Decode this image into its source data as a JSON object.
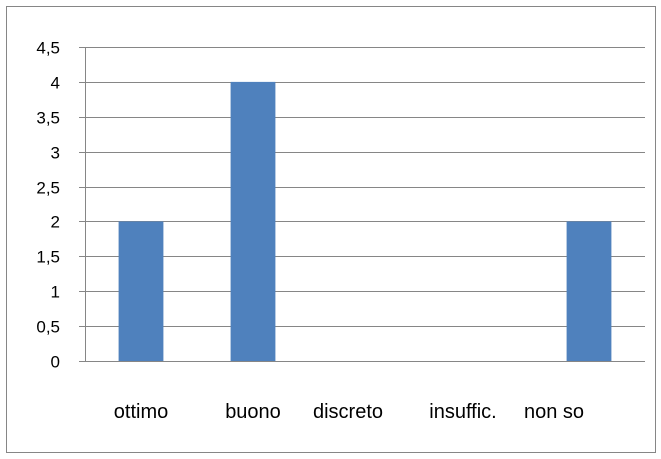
{
  "chart_data": {
    "type": "bar",
    "title": "",
    "xlabel": "",
    "ylabel": "",
    "categories": [
      "ottimo",
      "buono",
      "discreto",
      "insuffic.",
      "non so"
    ],
    "values": [
      2,
      4,
      0,
      0,
      2
    ],
    "ylim": [
      0,
      4.5
    ],
    "yticks": [
      "0",
      "0,5",
      "1",
      "1,5",
      "2",
      "2,5",
      "3",
      "3,5",
      "4",
      "4,5"
    ],
    "grid": true,
    "legend": "none",
    "bar_color": "#4f81bd",
    "gridline_color": "#868686",
    "frame_color": "#868686"
  }
}
